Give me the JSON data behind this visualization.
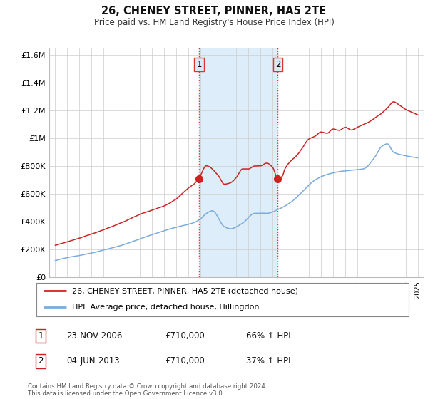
{
  "title": "26, CHENEY STREET, PINNER, HA5 2TE",
  "subtitle": "Price paid vs. HM Land Registry's House Price Index (HPI)",
  "legend_line1": "26, CHENEY STREET, PINNER, HA5 2TE (detached house)",
  "legend_line2": "HPI: Average price, detached house, Hillingdon",
  "footnote": "Contains HM Land Registry data © Crown copyright and database right 2024.\nThis data is licensed under the Open Government Licence v3.0.",
  "table_rows": [
    {
      "num": "1",
      "date": "23-NOV-2006",
      "price": "£710,000",
      "hpi": "66% ↑ HPI"
    },
    {
      "num": "2",
      "date": "04-JUN-2013",
      "price": "£710,000",
      "hpi": "37% ↑ HPI"
    }
  ],
  "sale1_x": 2006.9,
  "sale1_y": 710000,
  "sale2_x": 2013.42,
  "sale2_y": 710000,
  "vline1_x": 2006.9,
  "vline2_x": 2013.42,
  "ylim": [
    0,
    1650000
  ],
  "xlim": [
    1994.5,
    2025.5
  ],
  "hpi_color": "#7aabdc",
  "price_color": "#cc2222",
  "vline_color": "#dd3333",
  "bg_color": "#d8eaf8",
  "plot_bg": "#ffffff",
  "yticks": [
    0,
    200000,
    400000,
    600000,
    800000,
    1000000,
    1200000,
    1400000,
    1600000
  ],
  "ytick_labels": [
    "£0",
    "£200K",
    "£400K",
    "£600K",
    "£800K",
    "£1M",
    "£1.2M",
    "£1.4M",
    "£1.6M"
  ],
  "xticks": [
    1995,
    1996,
    1997,
    1998,
    1999,
    2000,
    2001,
    2002,
    2003,
    2004,
    2005,
    2006,
    2007,
    2008,
    2009,
    2010,
    2011,
    2012,
    2013,
    2014,
    2015,
    2016,
    2017,
    2018,
    2019,
    2020,
    2021,
    2022,
    2023,
    2024,
    2025
  ]
}
